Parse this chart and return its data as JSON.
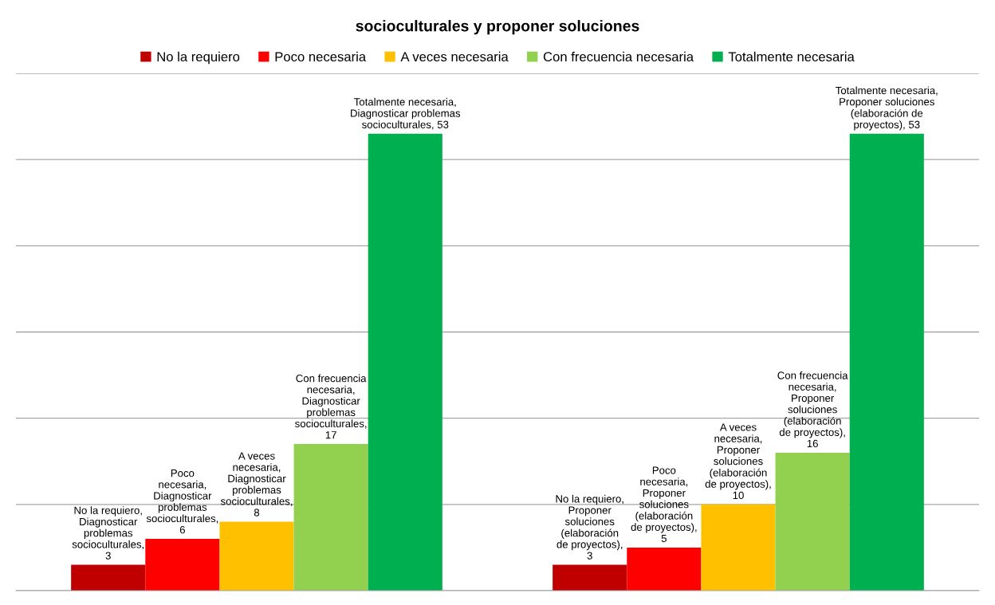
{
  "chart_data": {
    "type": "bar",
    "title": "socioculturales y proponer soluciones",
    "categories": [
      null,
      null
    ],
    "series": [
      {
        "name": "No la requiero",
        "color": "#c00000",
        "values": [
          3,
          3
        ],
        "value_labels": [
          "No la requiero, Diagnosticar problemas socioculturales, 3",
          "No la requiero, Proponer soluciones (elaboración de proyectos), 3"
        ]
      },
      {
        "name": "Poco necesaria",
        "color": "#ff0000",
        "values": [
          6,
          5
        ],
        "value_labels": [
          "Poco necesaria, Diagnosticar problemas socioculturales, 6",
          "Poco necesaria, Proponer soluciones (elaboración de proyectos), 5"
        ]
      },
      {
        "name": "A veces necesaria",
        "color": "#ffc000",
        "values": [
          8,
          10
        ],
        "value_labels": [
          "A veces necesaria, Diagnosticar problemas socioculturales, 8",
          "A veces necesaria, Proponer soluciones (elaboración de proyectos), 10"
        ]
      },
      {
        "name": "Con frecuencia necesaria",
        "color": "#92d050",
        "values": [
          17,
          16
        ],
        "value_labels": [
          "Con frecuencia necesaria, Diagnosticar problemas socioculturales, 17",
          "Con frecuencia necesaria, Proponer soluciones (elaboración de proyectos), 16"
        ]
      },
      {
        "name": "Totalmente necesaria",
        "color": "#00b050",
        "values": [
          53,
          53
        ],
        "value_labels": [
          "Totalmente necesaria, Diagnosticar problemas socioculturales, 53",
          "Totalmente necesaria, Proponer soluciones (elaboración de proyectos), 53"
        ]
      }
    ],
    "ylim": [
      0,
      60
    ],
    "yticks": [
      0,
      10,
      20,
      30,
      40,
      50,
      60
    ],
    "grid": "y",
    "legend": "top",
    "tick_labels": false
  }
}
